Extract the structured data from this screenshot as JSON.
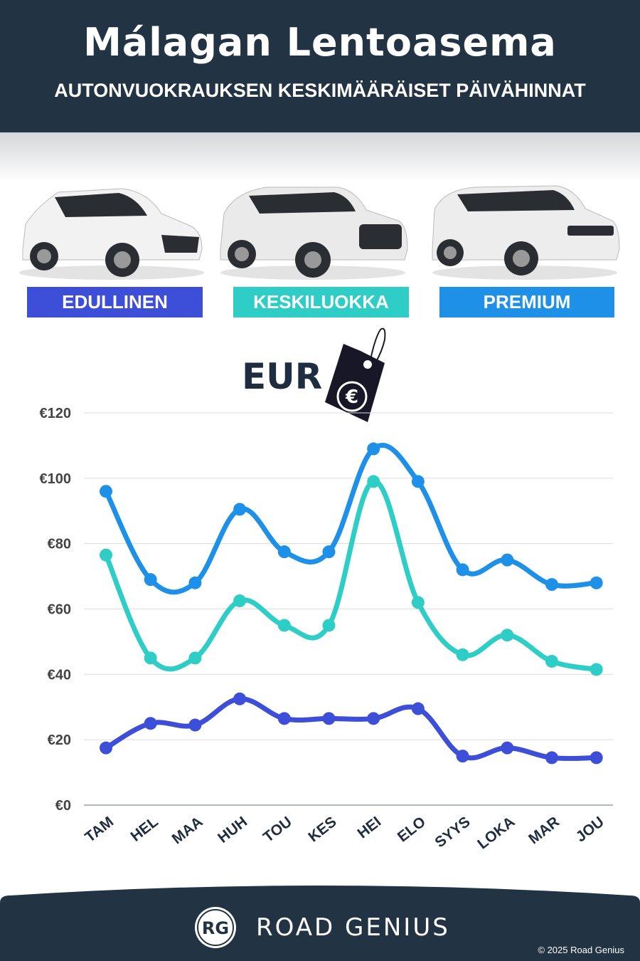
{
  "header": {
    "title": "Málagan Lentoasema",
    "subtitle": "AUTONVUOKRAUKSEN KESKIMÄÄRÄISET PÄIVÄHINNAT"
  },
  "categories": [
    {
      "label": "EDULLINEN",
      "color": "#3d4ed8"
    },
    {
      "label": "KESKILUOKKA",
      "color": "#2ecdc6"
    },
    {
      "label": "PREMIUM",
      "color": "#1e90e8"
    }
  ],
  "currency_label": "EUR",
  "chart_data": {
    "type": "line",
    "categories": [
      "TAM",
      "HEL",
      "MAA",
      "HUH",
      "TOU",
      "KES",
      "HEI",
      "ELO",
      "SYYS",
      "LOKA",
      "MAR",
      "JOU"
    ],
    "series": [
      {
        "name": "PREMIUM",
        "color": "#1e90e8",
        "values": [
          96,
          69,
          68,
          90.5,
          77.5,
          77.5,
          109,
          99,
          72,
          75,
          67.5,
          68
        ]
      },
      {
        "name": "KESKILUOKKA",
        "color": "#2ecdc6",
        "values": [
          76.5,
          45,
          45,
          62.5,
          55,
          55,
          99,
          62,
          46,
          52,
          44,
          41.5
        ]
      },
      {
        "name": "EDULLINEN",
        "color": "#3d4ed8",
        "values": [
          17.5,
          25,
          24.5,
          32.5,
          26.5,
          26.5,
          26.5,
          29.5,
          15,
          17.5,
          14.5,
          14.5
        ]
      }
    ],
    "yticks": [
      "€0",
      "€20",
      "€40",
      "€60",
      "€80",
      "€100",
      "€120"
    ],
    "ylim": [
      0,
      120
    ],
    "grid": true
  },
  "footer": {
    "brand": "ROAD GENIUS",
    "logo_text": "RG",
    "copyright": "© 2025 Road Genius",
    "color": "#223344"
  }
}
